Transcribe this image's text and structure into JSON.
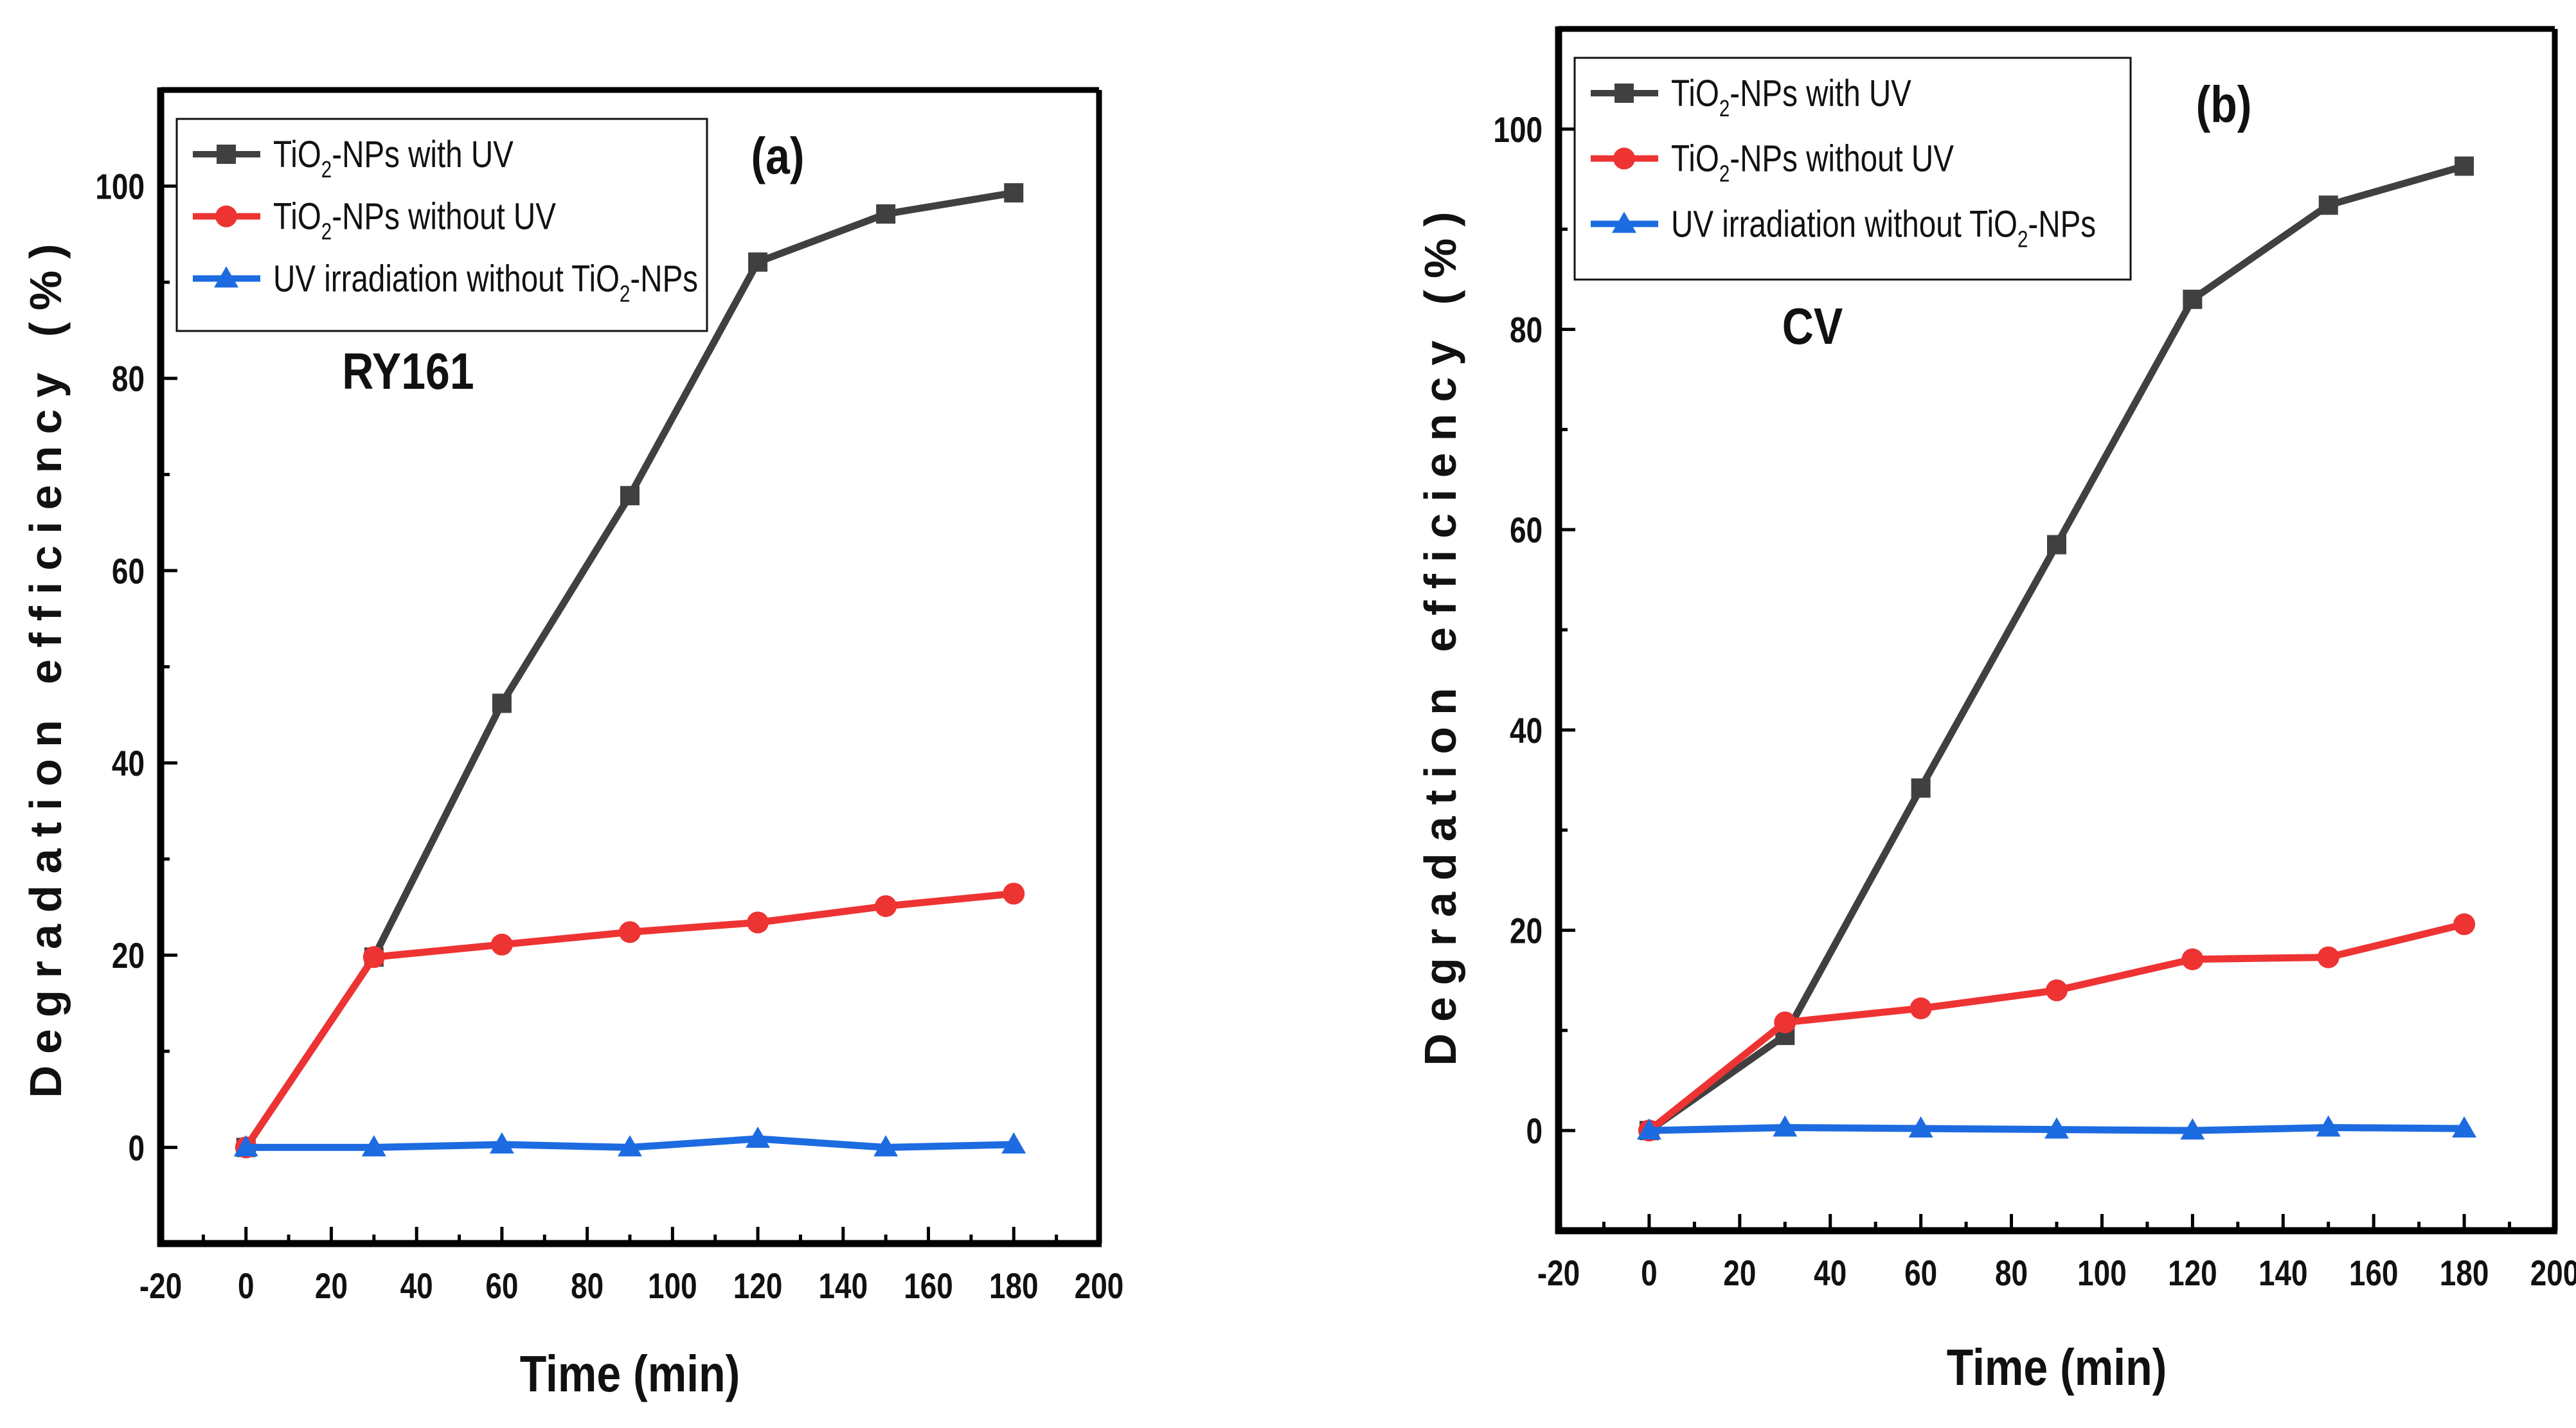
{
  "chart_data": [
    {
      "type": "line",
      "panel_label": "(a)",
      "annotation": "RY161",
      "xlabel": "Time (min)",
      "ylabel": "Degradation efficiency (%)",
      "xlim": [
        -20,
        200
      ],
      "ylim": [
        -10,
        110
      ],
      "xticks": [
        -20,
        0,
        20,
        40,
        60,
        80,
        100,
        120,
        140,
        160,
        180,
        200
      ],
      "yticks": [
        0,
        20,
        40,
        60,
        80,
        100
      ],
      "legend_position": "top-left",
      "x": [
        0,
        30,
        60,
        90,
        120,
        150,
        180
      ],
      "series": [
        {
          "name": "TiO₂-NPs  with UV",
          "name_parts": [
            "TiO",
            "2",
            "-NPs  with UV"
          ],
          "marker": "square",
          "color": "#404040",
          "values": [
            0,
            19.8,
            46.2,
            67.8,
            92.1,
            97.1,
            99.3
          ]
        },
        {
          "name": "TiO₂-NPs  without UV",
          "name_parts": [
            "TiO",
            "2",
            "-NPs  without UV"
          ],
          "marker": "circle",
          "color": "#ee3333",
          "values": [
            0,
            19.8,
            21.1,
            22.4,
            23.4,
            25.1,
            26.4
          ]
        },
        {
          "name": "UV irradiation without TiO₂-NPs",
          "name_parts": [
            "UV irradiation without TiO",
            "2",
            "-NPs"
          ],
          "marker": "triangle",
          "color": "#1d6be0",
          "values": [
            0,
            0,
            0.3,
            0,
            0.9,
            0,
            0.3
          ]
        }
      ]
    },
    {
      "type": "line",
      "panel_label": "(b)",
      "annotation": "CV",
      "xlabel": "Time (min)",
      "ylabel": "Degradation efficiency (%)",
      "xlim": [
        -20,
        200
      ],
      "ylim": [
        -10,
        110
      ],
      "xticks": [
        -20,
        0,
        20,
        40,
        60,
        80,
        100,
        120,
        140,
        160,
        180,
        200
      ],
      "yticks": [
        0,
        20,
        40,
        60,
        80,
        100
      ],
      "legend_position": "top-left",
      "x": [
        0,
        30,
        60,
        90,
        120,
        150,
        180
      ],
      "series": [
        {
          "name": "TiO₂-NPs  with UV",
          "name_parts": [
            "TiO",
            "2",
            "-NPs  with UV"
          ],
          "marker": "square",
          "color": "#404040",
          "values": [
            0,
            9.5,
            34.2,
            58.5,
            83,
            92.4,
            96.3
          ]
        },
        {
          "name": "TiO₂-NPs  without UV",
          "name_parts": [
            "TiO",
            "2",
            "-NPs  without UV"
          ],
          "marker": "circle",
          "color": "#ee3333",
          "values": [
            0,
            10.8,
            12.2,
            14,
            17.1,
            17.3,
            20.6
          ]
        },
        {
          "name": "UV irradiation without TiO₂-NPs",
          "name_parts": [
            "UV irradiation without TiO",
            "2",
            "-NPs"
          ],
          "marker": "triangle",
          "color": "#1d6be0",
          "values": [
            0,
            0.3,
            0.2,
            0.1,
            0,
            0.3,
            0.2
          ]
        }
      ]
    }
  ]
}
